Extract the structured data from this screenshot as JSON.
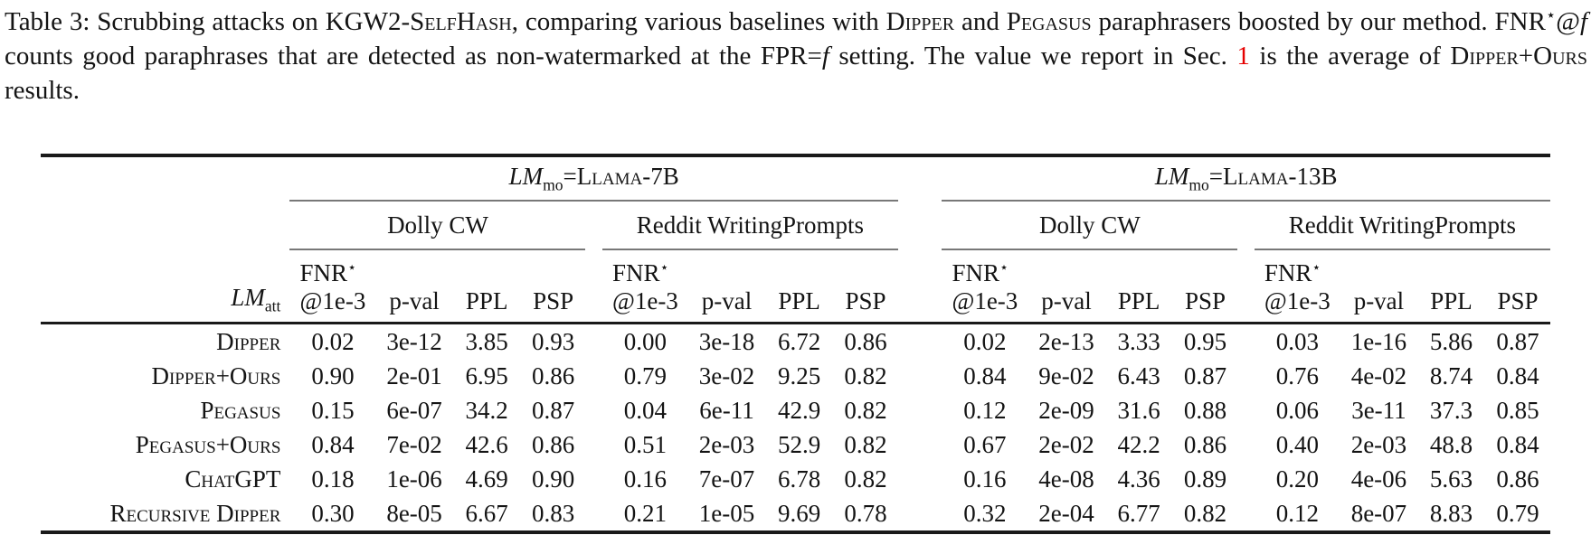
{
  "caption": {
    "segments": [
      {
        "t": "Table 3: Scrubbing attacks on ",
        "s": "n"
      },
      {
        "t": "KGW2-SelfHash",
        "s": "sc"
      },
      {
        "t": ", comparing various baselines with ",
        "s": "n"
      },
      {
        "t": "Dipper",
        "s": "sc"
      },
      {
        "t": " and ",
        "s": "n"
      },
      {
        "t": "Pegasus",
        "s": "sc"
      },
      {
        "t": " paraphrasers boosted by our method. FNR",
        "s": "n"
      },
      {
        "t": "⋆",
        "s": "sup"
      },
      {
        "t": "@",
        "s": "n"
      },
      {
        "t": "f",
        "s": "i"
      },
      {
        "t": " counts good paraphrases that are detected as non-watermarked at the FPR=",
        "s": "n"
      },
      {
        "t": "f",
        "s": "i"
      },
      {
        "t": " setting. The value we report in Sec. ",
        "s": "n"
      },
      {
        "t": "1",
        "s": "red"
      },
      {
        "t": " is the average of ",
        "s": "n"
      },
      {
        "t": "Dipper+Ours",
        "s": "sc"
      },
      {
        "t": " results.",
        "s": "n"
      }
    ]
  },
  "table": {
    "header": {
      "models": [
        {
          "lm": "LM",
          "sub": "mo",
          "eq": "=",
          "name": "Llama-7B"
        },
        {
          "lm": "LM",
          "sub": "mo",
          "eq": "=",
          "name": "Llama-13B"
        }
      ],
      "datasets": [
        "Dolly CW",
        "Reddit WritingPrompts",
        "Dolly CW",
        "Reddit WritingPrompts"
      ],
      "row_label": {
        "lm": "LM",
        "sub": "att"
      },
      "metrics": {
        "fnr": "FNR",
        "fnr_star": "⋆",
        "fnr_at": "@1e-3",
        "pval": "p-val",
        "ppl": "PPL",
        "psp": "PSP"
      }
    },
    "rows": [
      {
        "label": "Dipper",
        "values": [
          "0.02",
          "3e-12",
          "3.85",
          "0.93",
          "0.00",
          "3e-18",
          "6.72",
          "0.86",
          "0.02",
          "2e-13",
          "3.33",
          "0.95",
          "0.03",
          "1e-16",
          "5.86",
          "0.87"
        ]
      },
      {
        "label": "Dipper+Ours",
        "values": [
          "0.90",
          "2e-01",
          "6.95",
          "0.86",
          "0.79",
          "3e-02",
          "9.25",
          "0.82",
          "0.84",
          "9e-02",
          "6.43",
          "0.87",
          "0.76",
          "4e-02",
          "8.74",
          "0.84"
        ]
      },
      {
        "label": "Pegasus",
        "values": [
          "0.15",
          "6e-07",
          "34.2",
          "0.87",
          "0.04",
          "6e-11",
          "42.9",
          "0.82",
          "0.12",
          "2e-09",
          "31.6",
          "0.88",
          "0.06",
          "3e-11",
          "37.3",
          "0.85"
        ]
      },
      {
        "label": "Pegasus+Ours",
        "values": [
          "0.84",
          "7e-02",
          "42.6",
          "0.86",
          "0.51",
          "2e-03",
          "52.9",
          "0.82",
          "0.67",
          "2e-02",
          "42.2",
          "0.86",
          "0.40",
          "2e-03",
          "48.8",
          "0.84"
        ]
      },
      {
        "label": "ChatGPT",
        "values": [
          "0.18",
          "1e-06",
          "4.69",
          "0.90",
          "0.16",
          "7e-07",
          "6.78",
          "0.82",
          "0.16",
          "4e-08",
          "4.36",
          "0.89",
          "0.20",
          "4e-06",
          "5.63",
          "0.86"
        ]
      },
      {
        "label": "Recursive Dipper",
        "values": [
          "0.30",
          "8e-05",
          "6.67",
          "0.83",
          "0.21",
          "1e-05",
          "9.69",
          "0.78",
          "0.32",
          "2e-04",
          "6.77",
          "0.82",
          "0.12",
          "8e-07",
          "8.83",
          "0.79"
        ]
      }
    ]
  },
  "colors": {
    "accent_red": "#e60000",
    "rule_dark": "#1a1a1a",
    "rule_light": "#787878",
    "text": "#141414",
    "background": "#ffffff"
  }
}
